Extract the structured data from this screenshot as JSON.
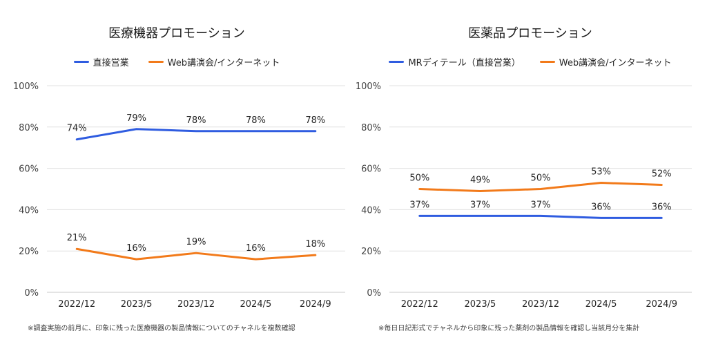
{
  "chart_data": [
    {
      "type": "line",
      "title": "医療機器プロモーション",
      "categories": [
        "2022/12",
        "2023/5",
        "2023/12",
        "2024/5",
        "2024/9"
      ],
      "y_ticks": [
        "100%",
        "80%",
        "60%",
        "40%",
        "20%",
        "0%"
      ],
      "ylim": [
        0,
        100
      ],
      "grid": true,
      "legend_position": "top",
      "series": [
        {
          "name": "直接営業",
          "color": "#2F5CE0",
          "values": [
            74,
            79,
            78,
            78,
            78
          ],
          "labels": [
            "74%",
            "79%",
            "78%",
            "78%",
            "78%"
          ]
        },
        {
          "name": "Web講演会/インターネット",
          "color": "#F27A1A",
          "values": [
            21,
            16,
            19,
            16,
            18
          ],
          "labels": [
            "21%",
            "16%",
            "19%",
            "16%",
            "18%"
          ]
        }
      ],
      "note": "※調査実施の前月に、印象に残った医療機器の製品情報についてのチャネルを複数確認"
    },
    {
      "type": "line",
      "title": "医薬品プロモーション",
      "categories": [
        "2022/12",
        "2023/5",
        "2023/12",
        "2024/5",
        "2024/9"
      ],
      "y_ticks": [
        "100%",
        "80%",
        "60%",
        "40%",
        "20%",
        "0%"
      ],
      "ylim": [
        0,
        100
      ],
      "grid": true,
      "legend_position": "top",
      "series": [
        {
          "name": "MRディテール（直接営業）",
          "color": "#2F5CE0",
          "values": [
            37,
            37,
            37,
            36,
            36
          ],
          "labels": [
            "37%",
            "37%",
            "37%",
            "36%",
            "36%"
          ]
        },
        {
          "name": "Web講演会/インターネット",
          "color": "#F27A1A",
          "values": [
            50,
            49,
            50,
            53,
            52
          ],
          "labels": [
            "50%",
            "49%",
            "50%",
            "53%",
            "52%"
          ]
        }
      ],
      "note": "※毎日日記形式でチャネルから印象に残った薬剤の製品情報を確認し当該月分を集計"
    }
  ]
}
